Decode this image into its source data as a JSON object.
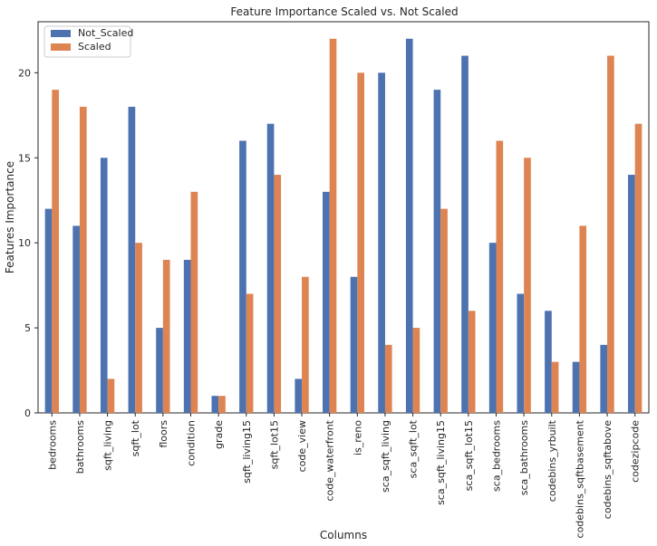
{
  "chart_data": {
    "type": "bar",
    "title": "Feature Importance Scaled vs. Not Scaled",
    "xlabel": "Columns",
    "ylabel": "Features Importance",
    "ylim": [
      0,
      23
    ],
    "yticks": [
      0,
      5,
      10,
      15,
      20
    ],
    "grid": false,
    "legend_position": "top-left",
    "categories": [
      "bedrooms",
      "bathrooms",
      "sqft_living",
      "sqft_lot",
      "floors",
      "condition",
      "grade",
      "sqft_living15",
      "sqft_lot15",
      "code_view",
      "code_waterfront",
      "is_reno",
      "sca_sqft_living",
      "sca_sqft_lot",
      "sca_sqft_living15",
      "sca_sqft_lot15",
      "sca_bedrooms",
      "sca_bathrooms",
      "codebins_yrbuilt",
      "codebins_sqftbasement",
      "codebins_sqftabove",
      "codezipcode"
    ],
    "series": [
      {
        "name": "Not_Scaled",
        "color": "#4c72b0",
        "values": [
          12,
          11,
          15,
          18,
          5,
          9,
          1,
          16,
          17,
          2,
          13,
          8,
          20,
          22,
          19,
          21,
          10,
          7,
          6,
          3,
          4,
          14
        ]
      },
      {
        "name": "Scaled",
        "color": "#dd8452",
        "values": [
          19,
          18,
          2,
          10,
          9,
          13,
          1,
          7,
          14,
          8,
          22,
          20,
          4,
          5,
          12,
          6,
          16,
          15,
          3,
          11,
          21,
          17
        ]
      }
    ]
  }
}
